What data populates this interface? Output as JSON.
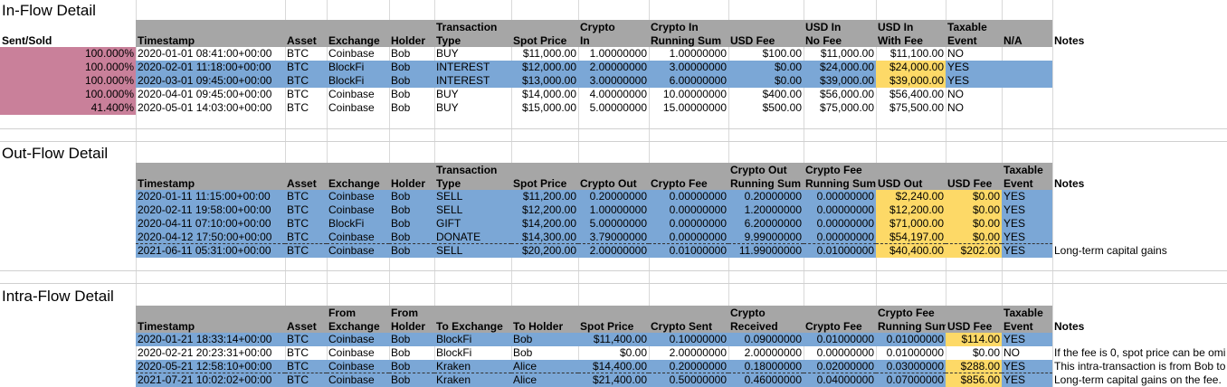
{
  "colors": {
    "header": "#a6a6a6",
    "blue": "#7ba7d6",
    "yellow": "#fdd967",
    "pink": "#c9809a"
  },
  "inflow": {
    "title": "In-Flow Detail",
    "headers": {
      "sent_sold": "Sent/Sold",
      "timestamp": "Timestamp",
      "asset": "Asset",
      "exchange": "Exchange",
      "holder": "Holder",
      "tx_type_1": "Transaction",
      "tx_type_2": "Type",
      "spot": "Spot Price",
      "crypto_in_1": "Crypto",
      "crypto_in_2": "In",
      "run_1": "Crypto In",
      "run_2": "Running Sum",
      "usd_fee": "USD Fee",
      "nofee_1": "USD In",
      "nofee_2": "No Fee",
      "withfee_1": "USD In",
      "withfee_2": "With Fee",
      "taxable_1": "Taxable",
      "taxable_2": "Event",
      "na": "N/A",
      "notes": "Notes"
    },
    "rows": [
      {
        "sent": "100.000%",
        "ts": "2020-01-01 08:41:00+00:00",
        "asset": "BTC",
        "exchange": "Coinbase",
        "holder": "Bob",
        "type": "BUY",
        "spot": "$11,000.00",
        "crypto": "1.00000000",
        "run": "1.00000000",
        "fee": "$100.00",
        "nofee": "$11,000.00",
        "withfee": "$11,100.00",
        "taxable": "NO"
      },
      {
        "sent": "100.000%",
        "ts": "2020-02-01 11:18:00+00:00",
        "asset": "BTC",
        "exchange": "BlockFi",
        "holder": "Bob",
        "type": "INTEREST",
        "spot": "$12,000.00",
        "crypto": "2.00000000",
        "run": "3.00000000",
        "fee": "$0.00",
        "nofee": "$24,000.00",
        "withfee": "$24,000.00",
        "taxable": "YES"
      },
      {
        "sent": "100.000%",
        "ts": "2020-03-01 09:45:00+00:00",
        "asset": "BTC",
        "exchange": "BlockFi",
        "holder": "Bob",
        "type": "INTEREST",
        "spot": "$13,000.00",
        "crypto": "3.00000000",
        "run": "6.00000000",
        "fee": "$0.00",
        "nofee": "$39,000.00",
        "withfee": "$39,000.00",
        "taxable": "YES"
      },
      {
        "sent": "100.000%",
        "ts": "2020-04-01 09:45:00+00:00",
        "asset": "BTC",
        "exchange": "Coinbase",
        "holder": "Bob",
        "type": "BUY",
        "spot": "$14,000.00",
        "crypto": "4.00000000",
        "run": "10.00000000",
        "fee": "$400.00",
        "nofee": "$56,000.00",
        "withfee": "$56,400.00",
        "taxable": "NO"
      },
      {
        "sent": "41.400%",
        "ts": "2020-05-01 14:03:00+00:00",
        "asset": "BTC",
        "exchange": "Coinbase",
        "holder": "Bob",
        "type": "BUY",
        "spot": "$15,000.00",
        "crypto": "5.00000000",
        "run": "15.00000000",
        "fee": "$500.00",
        "nofee": "$75,000.00",
        "withfee": "$75,500.00",
        "taxable": "NO"
      }
    ]
  },
  "outflow": {
    "title": "Out-Flow Detail",
    "headers": {
      "timestamp": "Timestamp",
      "asset": "Asset",
      "exchange": "Exchange",
      "holder": "Holder",
      "tx_type_1": "Transaction",
      "tx_type_2": "Type",
      "spot": "Spot Price",
      "crypto_out": "Crypto Out",
      "crypto_fee": "Crypto Fee",
      "run_1": "Crypto Out",
      "run_2": "Running Sum",
      "feerun_1": "Crypto Fee",
      "feerun_2": "Running Sum",
      "usd_out": "USD Out",
      "usd_fee": "USD Fee",
      "taxable_1": "Taxable",
      "taxable_2": "Event",
      "notes": "Notes"
    },
    "rows": [
      {
        "ts": "2020-01-11 11:15:00+00:00",
        "asset": "BTC",
        "exchange": "Coinbase",
        "holder": "Bob",
        "type": "SELL",
        "spot": "$11,200.00",
        "out": "0.20000000",
        "cfee": "0.00000000",
        "run": "0.20000000",
        "feerun": "0.00000000",
        "usdout": "$2,240.00",
        "usdfee": "$0.00",
        "taxable": "YES",
        "notes": ""
      },
      {
        "ts": "2020-02-11 19:58:00+00:00",
        "asset": "BTC",
        "exchange": "Coinbase",
        "holder": "Bob",
        "type": "SELL",
        "spot": "$12,200.00",
        "out": "1.00000000",
        "cfee": "0.00000000",
        "run": "1.20000000",
        "feerun": "0.00000000",
        "usdout": "$12,200.00",
        "usdfee": "$0.00",
        "taxable": "YES",
        "notes": ""
      },
      {
        "ts": "2020-04-11 07:10:00+00:00",
        "asset": "BTC",
        "exchange": "BlockFi",
        "holder": "Bob",
        "type": "GIFT",
        "spot": "$14,200.00",
        "out": "5.00000000",
        "cfee": "0.00000000",
        "run": "6.20000000",
        "feerun": "0.00000000",
        "usdout": "$71,000.00",
        "usdfee": "$0.00",
        "taxable": "YES",
        "notes": ""
      },
      {
        "ts": "2020-04-12 17:50:00+00:00",
        "asset": "BTC",
        "exchange": "Coinbase",
        "holder": "Bob",
        "type": "DONATE",
        "spot": "$14,300.00",
        "out": "3.79000000",
        "cfee": "0.00000000",
        "run": "9.99000000",
        "feerun": "0.00000000",
        "usdout": "$54,197.00",
        "usdfee": "$0.00",
        "taxable": "YES",
        "notes": ""
      },
      {
        "ts": "2021-06-11 05:31:00+00:00",
        "asset": "BTC",
        "exchange": "Coinbase",
        "holder": "Bob",
        "type": "SELL",
        "spot": "$20,200.00",
        "out": "2.00000000",
        "cfee": "0.01000000",
        "run": "11.99000000",
        "feerun": "0.01000000",
        "usdout": "$40,400.00",
        "usdfee": "$202.00",
        "taxable": "YES",
        "notes": "Long-term capital gains"
      }
    ]
  },
  "intraflow": {
    "title": "Intra-Flow Detail",
    "headers": {
      "timestamp": "Timestamp",
      "asset": "Asset",
      "from_ex_1": "From",
      "from_ex_2": "Exchange",
      "from_h_1": "From",
      "from_h_2": "Holder",
      "to_ex": "To Exchange",
      "to_h": "To Holder",
      "spot": "Spot Price",
      "sent": "Crypto Sent",
      "recv_1": "Crypto",
      "recv_2": "Received",
      "cfee": "Crypto Fee",
      "feerun_1": "Crypto Fee",
      "feerun_2": "Running Sum",
      "usd_fee": "USD Fee",
      "taxable_1": "Taxable",
      "taxable_2": "Event",
      "notes": "Notes"
    },
    "rows": [
      {
        "ts": "2020-01-21 18:33:14+00:00",
        "asset": "BTC",
        "fromex": "Coinbase",
        "fromh": "Bob",
        "toex": "BlockFi",
        "toh": "Bob",
        "spot": "$11,400.00",
        "sent": "0.10000000",
        "recv": "0.09000000",
        "cfee": "0.01000000",
        "feerun": "0.01000000",
        "usdfee": "$114.00",
        "taxable": "YES",
        "notes": ""
      },
      {
        "ts": "2020-02-21 20:23:31+00:00",
        "asset": "BTC",
        "fromex": "Coinbase",
        "fromh": "Bob",
        "toex": "BlockFi",
        "toh": "Bob",
        "spot": "$0.00",
        "sent": "2.00000000",
        "recv": "2.00000000",
        "cfee": "0.00000000",
        "feerun": "0.01000000",
        "usdfee": "$0.00",
        "taxable": "NO",
        "notes": "If the fee is 0, spot price can be omi"
      },
      {
        "ts": "2020-05-21 12:58:10+00:00",
        "asset": "BTC",
        "fromex": "Coinbase",
        "fromh": "Bob",
        "toex": "Kraken",
        "toh": "Alice",
        "spot": "$14,400.00",
        "sent": "0.20000000",
        "recv": "0.18000000",
        "cfee": "0.02000000",
        "feerun": "0.03000000",
        "usdfee": "$288.00",
        "taxable": "YES",
        "notes": "This intra-transaction is from Bob to"
      },
      {
        "ts": "2021-07-21 10:02:02+00:00",
        "asset": "BTC",
        "fromex": "Coinbase",
        "fromh": "Bob",
        "toex": "Kraken",
        "toh": "Alice",
        "spot": "$21,400.00",
        "sent": "0.50000000",
        "recv": "0.46000000",
        "cfee": "0.04000000",
        "feerun": "0.07000000",
        "usdfee": "$856.00",
        "taxable": "YES",
        "notes": "Long-term capital gains on the fee."
      }
    ]
  }
}
